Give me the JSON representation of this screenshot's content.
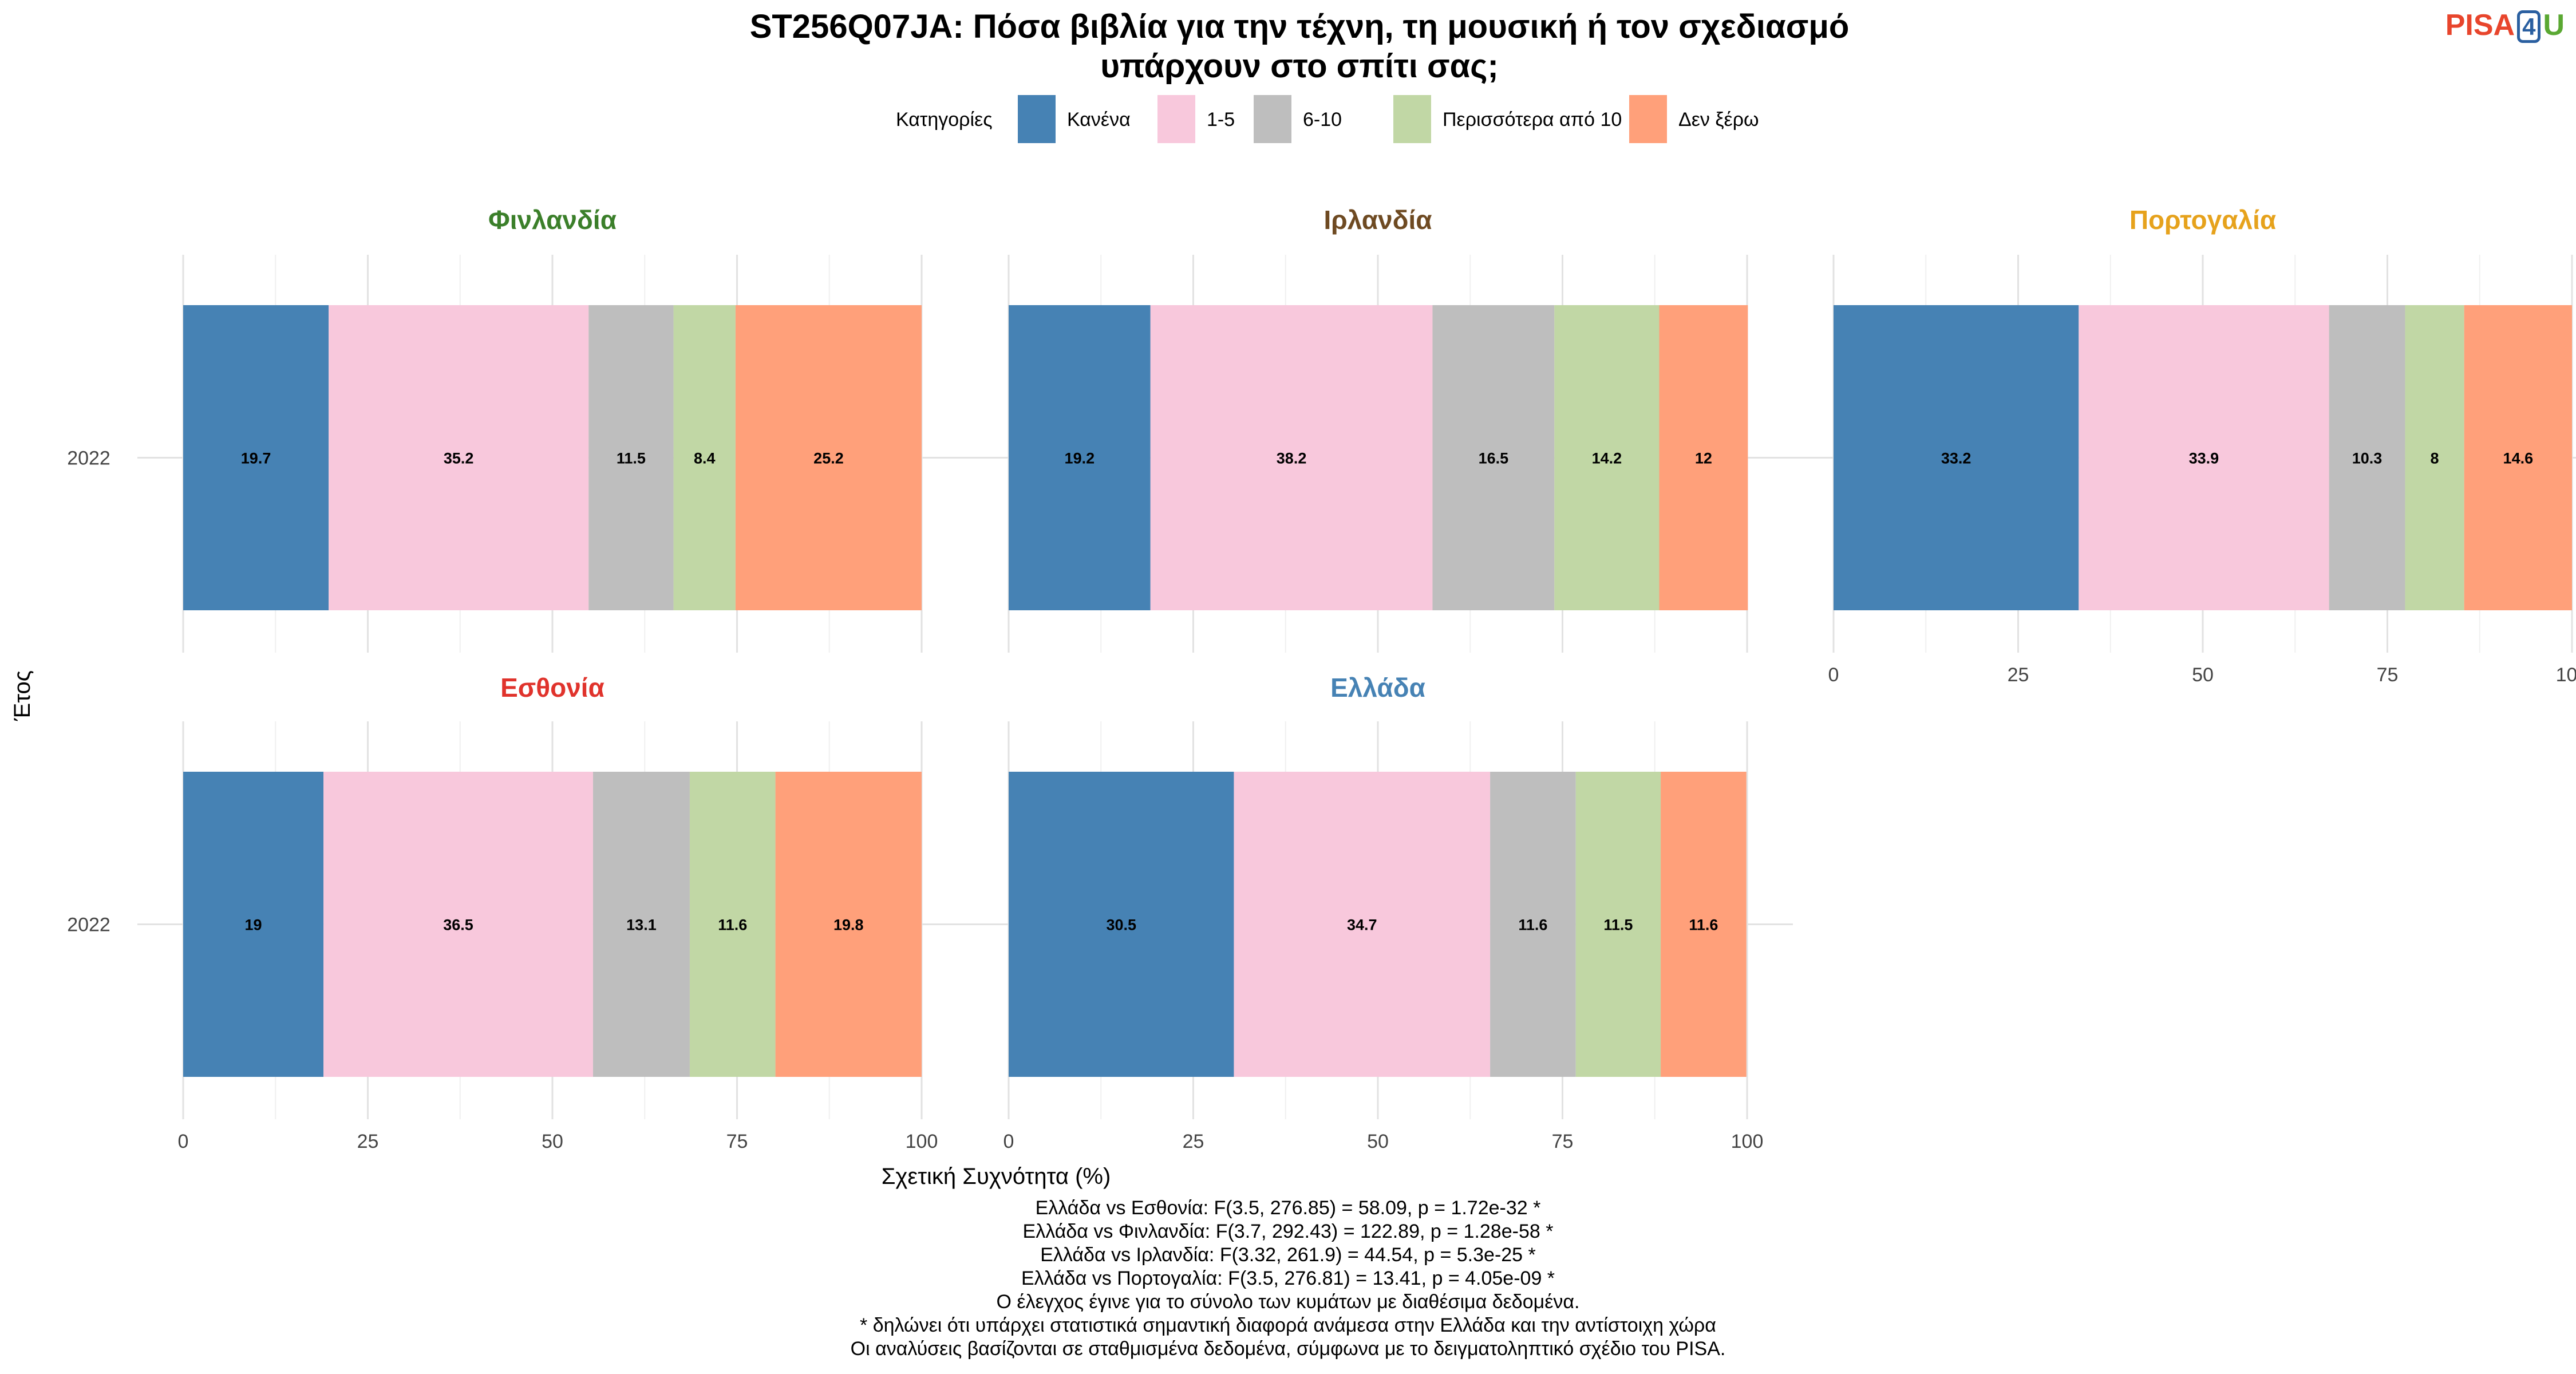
{
  "logo": {
    "pisa": "PISA",
    "four": "4",
    "u": "U",
    "colors": {
      "pisa": "#e8452c",
      "four": "#2a5fa0",
      "u": "#5aa832"
    }
  },
  "chart_data": {
    "type": "bar",
    "orientation": "horizontal",
    "stacked": true,
    "title_line1": "ST256Q07JA: Πόσα βιβλία για την τέχνη, τη μουσική ή τον σχεδιασμό",
    "title_line2": "υπάρχουν στο σπίτι σας;",
    "xlabel": "Σχετική Συχνότητα (%)",
    "ylabel": "Έτος",
    "xlim": [
      0,
      100
    ],
    "xticks": [
      "0",
      "25",
      "50",
      "75",
      "100"
    ],
    "legend_title": "Κατηγορίες",
    "legend_position": "top",
    "grid": true,
    "categories": [
      {
        "name": "Κανένα",
        "color": "#4682b4"
      },
      {
        "name": "1-5",
        "color": "#f8c8dc"
      },
      {
        "name": "6-10",
        "color": "#bebebe"
      },
      {
        "name": "Περισσότερα από 10",
        "color": "#c1d7a5"
      },
      {
        "name": "Δεν ξέρω",
        "color": "#ffa07a"
      }
    ],
    "panels": [
      {
        "country": "Φινλανδία",
        "color": "#3b7f2a",
        "year": "2022",
        "values": [
          19.7,
          35.2,
          11.5,
          8.4,
          25.2
        ],
        "labels": [
          "19.7",
          "35.2",
          "11.5",
          "8.4",
          "25.2"
        ]
      },
      {
        "country": "Ιρλανδία",
        "color": "#6e4a22",
        "year": "2022",
        "values": [
          19.2,
          38.2,
          16.5,
          14.2,
          12
        ],
        "labels": [
          "19.2",
          "38.2",
          "16.5",
          "14.2",
          "12"
        ]
      },
      {
        "country": "Πορτογαλία",
        "color": "#e6a21c",
        "year": "2022",
        "values": [
          33.2,
          33.9,
          10.3,
          8,
          14.6
        ],
        "labels": [
          "33.2",
          "33.9",
          "10.3",
          "8",
          "14.6"
        ]
      },
      {
        "country": "Εσθονία",
        "color": "#e0332c",
        "year": "2022",
        "values": [
          19,
          36.5,
          13.1,
          11.6,
          19.8
        ],
        "labels": [
          "19",
          "36.5",
          "13.1",
          "11.6",
          "19.8"
        ]
      },
      {
        "country": "Ελλάδα",
        "color": "#4682b4",
        "year": "2022",
        "values": [
          30.5,
          34.7,
          11.6,
          11.5,
          11.6
        ],
        "labels": [
          "30.5",
          "34.7",
          "11.6",
          "11.5",
          "11.6"
        ]
      }
    ]
  },
  "footer": {
    "lines": [
      "Ελλάδα vs Εσθονία: F(3.5, 276.85) = 58.09, p = 1.72e-32 *",
      "Ελλάδα vs Φινλανδία: F(3.7, 292.43) = 122.89, p = 1.28e-58 *",
      "Ελλάδα vs Ιρλανδία: F(3.32, 261.9) = 44.54, p = 5.3e-25 *",
      "Ελλάδα vs Πορτογαλία: F(3.5, 276.81) = 13.41, p = 4.05e-09 *",
      "Ο έλεγχος έγινε για το σύνολο των κυμάτων με διαθέσιμα δεδομένα.",
      "* δηλώνει ότι υπάρχει στατιστικά σημαντική διαφορά ανάμεσα στην Ελλάδα και την αντίστοιχη χώρα",
      "Οι αναλύσεις βασίζονται σε σταθμισμένα δεδομένα, σύμφωνα με το δειγματοληπτικό σχέδιο του PISA."
    ]
  }
}
